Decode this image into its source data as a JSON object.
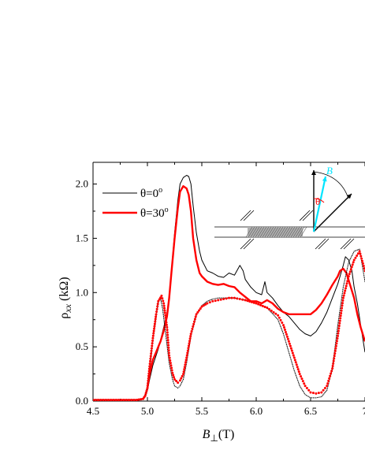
{
  "chart_data": {
    "type": "line",
    "xlabel_main": "B",
    "xlabel_sub": "⊥",
    "xlabel_unit": "(T)",
    "ylabel_main": "ρ",
    "ylabel_sub": "xx",
    "ylabel_unit": "(kΩ)",
    "xlim": [
      4.5,
      7.0
    ],
    "ylim": [
      0,
      2.2
    ],
    "xticks": [
      4.5,
      5.0,
      5.5,
      6.0,
      6.5,
      7.0
    ],
    "xtick_labels": [
      "4.5",
      "5.0",
      "5.5",
      "6.0",
      "6.5",
      "7"
    ],
    "yticks": [
      0.0,
      0.5,
      1.0,
      1.5,
      2.0
    ],
    "ytick_labels": [
      "0.0",
      "0.5",
      "1.0",
      "1.5",
      "2.0"
    ],
    "grid": false,
    "legend_position": "top-left",
    "series": [
      {
        "name": "θ=0°",
        "style": "solid",
        "color": "#000000",
        "x": [
          4.5,
          4.9,
          4.96,
          4.98,
          5.0,
          5.02,
          5.05,
          5.08,
          5.1,
          5.12,
          5.15,
          5.18,
          5.2,
          5.22,
          5.25,
          5.28,
          5.3,
          5.33,
          5.36,
          5.38,
          5.4,
          5.42,
          5.45,
          5.48,
          5.5,
          5.55,
          5.6,
          5.65,
          5.7,
          5.75,
          5.8,
          5.85,
          5.88,
          5.9,
          5.95,
          6.0,
          6.05,
          6.08,
          6.1,
          6.15,
          6.2,
          6.25,
          6.3,
          6.35,
          6.4,
          6.45,
          6.5,
          6.55,
          6.6,
          6.65,
          6.7,
          6.75,
          6.8,
          6.82,
          6.85,
          6.88,
          6.9,
          6.93,
          6.96,
          7.0
        ],
        "y": [
          0.01,
          0.01,
          0.02,
          0.04,
          0.1,
          0.2,
          0.33,
          0.42,
          0.48,
          0.56,
          0.68,
          0.8,
          0.95,
          1.2,
          1.55,
          1.85,
          2.0,
          2.06,
          2.08,
          2.07,
          2.0,
          1.8,
          1.55,
          1.38,
          1.3,
          1.2,
          1.18,
          1.15,
          1.14,
          1.18,
          1.16,
          1.25,
          1.2,
          1.12,
          1.05,
          1.0,
          0.98,
          1.1,
          1.0,
          0.95,
          0.88,
          0.82,
          0.78,
          0.72,
          0.66,
          0.62,
          0.6,
          0.64,
          0.72,
          0.82,
          0.95,
          1.08,
          1.25,
          1.33,
          1.3,
          1.2,
          1.05,
          0.9,
          0.7,
          0.45
        ]
      },
      {
        "name": "θ=30°",
        "style": "solid-thick",
        "color": "#ff0000",
        "x": [
          4.5,
          4.9,
          4.96,
          4.98,
          5.0,
          5.02,
          5.05,
          5.08,
          5.1,
          5.12,
          5.15,
          5.18,
          5.2,
          5.22,
          5.25,
          5.28,
          5.3,
          5.33,
          5.36,
          5.38,
          5.4,
          5.42,
          5.45,
          5.48,
          5.5,
          5.55,
          5.6,
          5.65,
          5.7,
          5.75,
          5.8,
          5.85,
          5.9,
          5.95,
          6.0,
          6.05,
          6.1,
          6.15,
          6.2,
          6.25,
          6.3,
          6.35,
          6.4,
          6.45,
          6.5,
          6.55,
          6.6,
          6.65,
          6.7,
          6.75,
          6.77,
          6.8,
          6.83,
          6.86,
          6.9,
          6.93,
          6.96,
          7.0
        ],
        "y": [
          0.01,
          0.01,
          0.02,
          0.05,
          0.12,
          0.25,
          0.38,
          0.45,
          0.5,
          0.55,
          0.65,
          0.78,
          0.95,
          1.18,
          1.5,
          1.78,
          1.93,
          1.98,
          1.96,
          1.9,
          1.75,
          1.5,
          1.3,
          1.18,
          1.15,
          1.1,
          1.08,
          1.07,
          1.08,
          1.06,
          1.05,
          1.0,
          0.96,
          0.92,
          0.92,
          0.9,
          0.93,
          0.9,
          0.85,
          0.82,
          0.8,
          0.8,
          0.8,
          0.8,
          0.8,
          0.84,
          0.9,
          0.98,
          1.07,
          1.15,
          1.2,
          1.22,
          1.18,
          1.08,
          0.95,
          0.8,
          0.68,
          0.55
        ]
      },
      {
        "name": "θ=0° (dotted)",
        "style": "dotted",
        "color": "#000000",
        "x": [
          4.5,
          4.9,
          4.96,
          4.98,
          5.0,
          5.02,
          5.05,
          5.08,
          5.1,
          5.12,
          5.14,
          5.17,
          5.2,
          5.23,
          5.25,
          5.28,
          5.3,
          5.33,
          5.36,
          5.4,
          5.45,
          5.5,
          5.55,
          5.6,
          5.65,
          5.7,
          5.75,
          5.8,
          5.9,
          6.0,
          6.1,
          6.2,
          6.25,
          6.3,
          6.35,
          6.4,
          6.45,
          6.5,
          6.55,
          6.6,
          6.65,
          6.7,
          6.75,
          6.8,
          6.85,
          6.9,
          6.95,
          7.0
        ],
        "y": [
          0.01,
          0.01,
          0.02,
          0.05,
          0.12,
          0.3,
          0.55,
          0.78,
          0.92,
          0.95,
          0.85,
          0.6,
          0.35,
          0.2,
          0.14,
          0.12,
          0.14,
          0.2,
          0.35,
          0.6,
          0.8,
          0.88,
          0.92,
          0.94,
          0.95,
          0.95,
          0.95,
          0.95,
          0.93,
          0.9,
          0.86,
          0.75,
          0.62,
          0.45,
          0.28,
          0.14,
          0.06,
          0.03,
          0.03,
          0.04,
          0.1,
          0.3,
          0.7,
          1.05,
          1.28,
          1.38,
          1.4,
          1.1
        ]
      },
      {
        "name": "θ=30° (dotted)",
        "style": "dotted",
        "color": "#ff0000",
        "x": [
          4.5,
          4.9,
          4.96,
          4.98,
          5.0,
          5.02,
          5.05,
          5.08,
          5.1,
          5.13,
          5.15,
          5.18,
          5.2,
          5.23,
          5.25,
          5.28,
          5.3,
          5.33,
          5.36,
          5.4,
          5.45,
          5.5,
          5.55,
          5.6,
          5.65,
          5.7,
          5.75,
          5.8,
          5.9,
          6.0,
          6.1,
          6.2,
          6.25,
          6.3,
          6.35,
          6.4,
          6.45,
          6.5,
          6.55,
          6.6,
          6.65,
          6.7,
          6.75,
          6.8,
          6.85,
          6.9,
          6.95,
          7.0
        ],
        "y": [
          0.01,
          0.01,
          0.02,
          0.05,
          0.12,
          0.32,
          0.58,
          0.8,
          0.92,
          0.97,
          0.9,
          0.68,
          0.42,
          0.26,
          0.2,
          0.17,
          0.19,
          0.25,
          0.4,
          0.62,
          0.8,
          0.87,
          0.9,
          0.92,
          0.93,
          0.94,
          0.95,
          0.95,
          0.93,
          0.9,
          0.86,
          0.79,
          0.7,
          0.55,
          0.4,
          0.25,
          0.14,
          0.08,
          0.07,
          0.08,
          0.14,
          0.3,
          0.6,
          0.95,
          1.15,
          1.3,
          1.38,
          1.2
        ]
      }
    ],
    "legend": [
      {
        "label": "θ=0",
        "sup": "o",
        "color": "#000000",
        "width": 1
      },
      {
        "label": "θ=30",
        "sup": "o",
        "color": "#ff0000",
        "width": 2.6
      }
    ],
    "inset": {
      "angle_label": "θ",
      "field_label": "B",
      "arrow_color": "#00e5ff",
      "angle_color": "#ff0000"
    }
  }
}
